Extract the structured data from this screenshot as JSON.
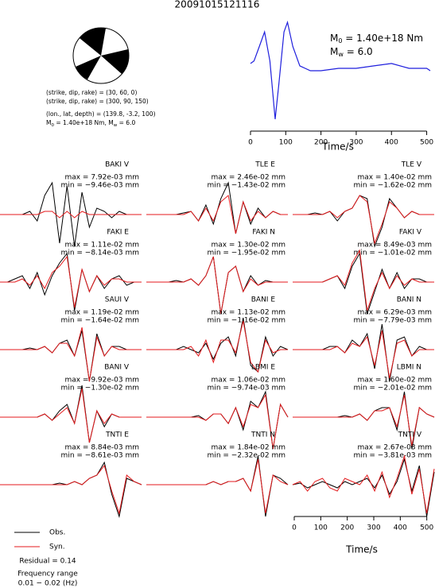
{
  "title": "20091015121116",
  "mechanism": [
    "(strike, dip, rake) = (30, 60, 0)",
    "(strike, dip, rake) = (300, 90, 150)",
    "(lon., lat, depth) = (139.8, -3.2, 100)"
  ],
  "moment_line": {
    "m": "M",
    "m_sub": "0",
    "m_text": " = 1.40e+18 Nm, ",
    "w": "M",
    "w_sub": "w",
    "w_text": " = 6.0"
  },
  "stf": {
    "type": "line",
    "color": "#1f1fdd",
    "x": [
      0,
      10,
      25,
      40,
      55,
      70,
      80,
      95,
      105,
      120,
      140,
      170,
      200,
      250,
      300,
      350,
      400,
      450,
      500,
      510
    ],
    "values": [
      0.15,
      0.2,
      0.5,
      0.8,
      0.2,
      -1,
      -0.3,
      0.8,
      1,
      0.5,
      0.1,
      0,
      0,
      0.05,
      0.05,
      0.1,
      0.15,
      0.05,
      0.05,
      0
    ],
    "xlim": [
      0,
      510
    ],
    "xticks": [
      0,
      100,
      200,
      300,
      400,
      500
    ],
    "xlabel": "Time/s",
    "m0": {
      "symbol": "M",
      "sub": "0",
      "text": " = 1.40e+18 Nm"
    },
    "mw": {
      "symbol": "M",
      "sub": "w",
      "text": " = 6.0"
    }
  },
  "panels": [
    {
      "station": "BAKI V",
      "max": "max = 7.92e-03 mm",
      "min": "min = −9.46e-03 mm",
      "obs": [
        0,
        0,
        0,
        0,
        0.1,
        -0.2,
        0.6,
        1,
        -0.9,
        0.9,
        -1,
        0.7,
        -0.4,
        0.2,
        0.1,
        -0.1,
        0.1,
        0,
        0,
        0
      ],
      "syn": [
        0,
        0,
        0,
        0,
        0,
        0,
        0.1,
        0.1,
        -0.1,
        0.1,
        -0.1,
        0.1,
        0,
        0,
        0,
        0,
        0,
        0,
        0,
        0
      ]
    },
    {
      "station": "TLE E",
      "max": "max = 2.46e-02 mm",
      "min": "min = −1.43e-02 mm",
      "obs": [
        0,
        0,
        0,
        0,
        0,
        0.05,
        0.1,
        -0.2,
        0.3,
        -0.3,
        0.5,
        1,
        -0.6,
        0.4,
        -0.3,
        0.2,
        -0.1,
        0.1,
        0,
        0
      ],
      "syn": [
        0,
        0,
        0,
        0,
        0,
        0,
        0.1,
        -0.2,
        0.2,
        -0.2,
        0.4,
        0.6,
        -0.6,
        0.4,
        -0.2,
        0.1,
        -0.1,
        0.1,
        0,
        0
      ]
    },
    {
      "station": "TLE V",
      "max": "max = 1.40e-02 mm",
      "min": "min = −1.62e-02 mm",
      "obs": [
        0,
        0,
        0,
        0.05,
        0,
        0.1,
        -0.2,
        0.1,
        0.2,
        0.6,
        0.5,
        -1,
        -0.4,
        0.5,
        0.2,
        -0.1,
        0.1,
        0,
        0,
        0
      ],
      "syn": [
        0,
        0,
        0,
        0,
        0,
        0.1,
        -0.1,
        0.1,
        0.2,
        0.6,
        0.4,
        -0.9,
        -0.3,
        0.4,
        0.2,
        -0.1,
        0.1,
        0,
        0,
        0
      ]
    },
    {
      "station": "FAKI E",
      "max": "max = 1.11e-02 mm",
      "min": "min = −8.14e-03 mm",
      "obs": [
        0,
        0,
        0.1,
        0.2,
        -0.2,
        0.3,
        -0.4,
        0.2,
        0.6,
        0.9,
        -0.9,
        0.4,
        -0.3,
        0.2,
        -0.2,
        0.1,
        0.2,
        -0.1,
        0,
        0
      ],
      "syn": [
        0,
        0,
        0,
        0.1,
        -0.1,
        0.2,
        -0.2,
        0.3,
        0.5,
        0.8,
        -0.8,
        0.4,
        -0.3,
        0.2,
        -0.1,
        0.1,
        0.1,
        0,
        0,
        0
      ]
    },
    {
      "station": "FAKI N",
      "max": "max = 1.30e-02 mm",
      "min": "min = −1.95e-02 mm",
      "obs": [
        0,
        0,
        0,
        0,
        0.05,
        0,
        0.1,
        -0.1,
        0.2,
        0.8,
        -1,
        0.3,
        0.5,
        -0.3,
        0.2,
        -0.1,
        0.05,
        0,
        0,
        0
      ],
      "syn": [
        0,
        0,
        0,
        0,
        0,
        0,
        0.1,
        -0.1,
        0.2,
        0.8,
        -1,
        0.3,
        0.5,
        -0.3,
        0.1,
        -0.1,
        0,
        0,
        0,
        0
      ]
    },
    {
      "station": "FAKI V",
      "max": "max = 8.49e-03 mm",
      "min": "min = −1.01e-02 mm",
      "obs": [
        0,
        0,
        0,
        0,
        0,
        0.1,
        0.2,
        -0.2,
        0.5,
        0.9,
        -1,
        -0.3,
        0.4,
        -0.2,
        0.3,
        -0.2,
        0.1,
        0.1,
        0,
        0
      ],
      "syn": [
        0,
        0,
        0,
        0,
        0,
        0.1,
        0.2,
        -0.1,
        0.6,
        1,
        -0.9,
        -0.2,
        0.3,
        -0.2,
        0.2,
        -0.1,
        0.1,
        0,
        0,
        0
      ]
    },
    {
      "station": "SAUI V",
      "max": "max = 1.19e-02 mm",
      "min": "min = −1.64e-02 mm",
      "obs": [
        0,
        0,
        0,
        0,
        0.05,
        0,
        0.1,
        -0.1,
        0.2,
        0.3,
        -0.2,
        0.6,
        -1,
        0.5,
        -0.2,
        0.1,
        0.1,
        0,
        0,
        0
      ],
      "syn": [
        0,
        0,
        0,
        0,
        0,
        0,
        0.1,
        -0.1,
        0.2,
        0.2,
        -0.2,
        0.7,
        -1,
        0.4,
        -0.2,
        0.1,
        0,
        0,
        0,
        0
      ]
    },
    {
      "station": "BANI E",
      "max": "max = 1.13e-02 mm",
      "min": "min = −1.16e-02 mm",
      "obs": [
        0,
        0,
        0,
        0,
        0,
        0.1,
        0,
        -0.1,
        0.2,
        -0.3,
        0.2,
        0.4,
        -0.2,
        1,
        -0.5,
        -0.7,
        0.4,
        -0.2,
        0.1,
        0
      ],
      "syn": [
        0,
        0,
        0,
        0,
        0,
        0,
        0.1,
        -0.2,
        0.3,
        -0.4,
        0.3,
        0.3,
        -0.1,
        0.9,
        -0.4,
        -0.7,
        0.3,
        -0.1,
        0,
        0
      ]
    },
    {
      "station": "BANI N",
      "max": "max = 6.29e-03 mm",
      "min": "min = −7.79e-03 mm",
      "obs": [
        0,
        0,
        0,
        0,
        0,
        0.1,
        0.1,
        -0.1,
        0.3,
        0.1,
        0.5,
        -0.6,
        0.8,
        -1,
        0.3,
        0.4,
        -0.2,
        0.1,
        0,
        0
      ],
      "syn": [
        0,
        0,
        0,
        0,
        0,
        0,
        0.1,
        -0.1,
        0.2,
        0.1,
        0.4,
        -0.5,
        0.6,
        -0.9,
        0.2,
        0.3,
        -0.2,
        0,
        0,
        0
      ]
    },
    {
      "station": "BANI V",
      "max": "max = 9.92e-03 mm",
      "min": "min = −1.30e-02 mm",
      "obs": [
        0,
        0,
        0,
        0,
        0,
        0,
        0.1,
        -0.1,
        0.2,
        0.4,
        -0.2,
        1,
        -0.8,
        0.2,
        -0.3,
        0.1,
        0,
        0,
        0,
        0
      ],
      "syn": [
        0,
        0,
        0,
        0,
        0,
        0,
        0.1,
        -0.1,
        0.1,
        0.3,
        -0.2,
        0.9,
        -0.8,
        0.2,
        -0.2,
        0.1,
        0,
        0,
        0,
        0
      ]
    },
    {
      "station": "LBMI E",
      "max": "max = 1.06e-02 mm",
      "min": "min = −9.74e-03 mm",
      "obs": [
        0,
        0,
        0,
        0,
        0,
        0,
        0,
        0.05,
        -0.1,
        0.1,
        0.1,
        -0.2,
        0.3,
        -0.4,
        0.5,
        0.3,
        0.8,
        -1,
        0.4,
        0
      ],
      "syn": [
        0,
        0,
        0,
        0,
        0,
        0,
        0,
        0,
        -0.1,
        0.1,
        0.1,
        -0.2,
        0.3,
        -0.3,
        0.4,
        0.3,
        0.7,
        -1,
        0.4,
        0
      ]
    },
    {
      "station": "LBMI N",
      "max": "max = 1.60e-02 mm",
      "min": "min = −2.01e-02 mm",
      "obs": [
        0,
        0,
        0,
        0,
        0,
        0,
        0,
        0.05,
        0,
        0.1,
        -0.1,
        0.2,
        0.3,
        0.3,
        -0.4,
        0.8,
        -1,
        0.3,
        0.1,
        0
      ],
      "syn": [
        0,
        0,
        0,
        0,
        0,
        0,
        0,
        0,
        0,
        0.1,
        -0.1,
        0.2,
        0.2,
        0.3,
        -0.3,
        0.7,
        -0.9,
        0.3,
        0.1,
        0
      ]
    },
    {
      "station": "TNTI E",
      "max": "max = 8.84e-03 mm",
      "min": "min = −8.61e-03 mm",
      "obs": [
        0,
        0,
        0,
        0,
        0,
        0,
        0,
        0,
        0.05,
        0,
        0.1,
        0,
        0.2,
        0.3,
        0.7,
        -0.3,
        -1,
        0.2,
        0.1,
        0
      ],
      "syn": [
        0,
        0,
        0,
        0,
        0,
        0,
        0,
        0,
        0,
        0,
        0.1,
        0,
        0.2,
        0.3,
        0.6,
        -0.2,
        -0.9,
        0.3,
        0.1,
        0
      ]
    },
    {
      "station": "TNTI N",
      "max": "max = 1.84e-02 mm",
      "min": "min = −2.32e-02 mm",
      "obs": [
        0,
        0,
        0,
        0,
        0,
        0,
        0,
        0,
        0,
        0.1,
        0,
        0.1,
        0.1,
        0.2,
        -0.2,
        0.9,
        -1,
        0.3,
        0.2,
        0
      ],
      "syn": [
        0,
        0,
        0,
        0,
        0,
        0,
        0,
        0,
        0,
        0.1,
        0,
        0.1,
        0.1,
        0.2,
        -0.2,
        0.8,
        -0.9,
        0.3,
        0.1,
        0
      ]
    },
    {
      "station": "TNTI V",
      "max": "max = 2.67e-03 mm",
      "min": "min = −3.81e-03 mm",
      "obs": [
        0,
        0.05,
        -0.1,
        0,
        0.1,
        0,
        -0.1,
        0.1,
        0,
        0.1,
        0.2,
        -0.1,
        0.3,
        -0.3,
        0.1,
        0.8,
        -0.2,
        0.6,
        -1,
        0.4
      ],
      "syn": [
        0,
        0.1,
        -0.2,
        0.1,
        0.2,
        -0.1,
        -0.2,
        0.2,
        0.1,
        0,
        0.3,
        -0.2,
        0.4,
        -0.4,
        0.2,
        0.9,
        -0.3,
        0.5,
        -0.9,
        0.5
      ]
    }
  ],
  "legend": [
    {
      "name": "Obs.",
      "color": "#000000"
    },
    {
      "name": "Syn.",
      "color": "#e41a1c"
    }
  ],
  "residual": "Residual = 0.14",
  "frequency": [
    "Frequency range",
    "0.01 − 0.02 (Hz)"
  ],
  "time_axis": {
    "xlim": [
      0,
      510
    ],
    "xticks": [
      0,
      100,
      200,
      300,
      400,
      500
    ],
    "xlabel": "Time/s"
  }
}
